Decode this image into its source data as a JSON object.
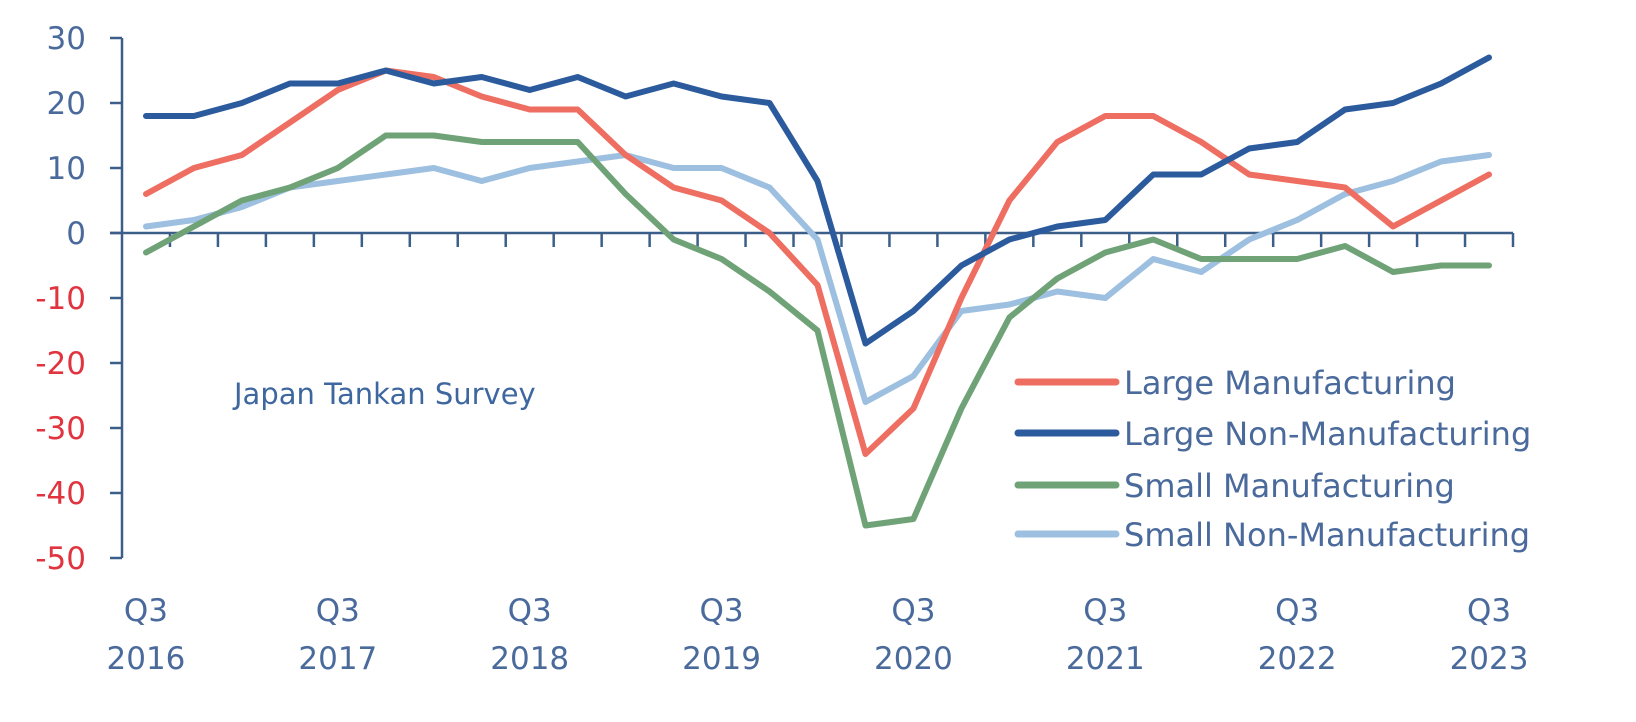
{
  "chart_data": {
    "type": "line",
    "title": "Japan Tankan Survey",
    "xlabel": "",
    "ylabel": "",
    "ylim": [
      -50,
      30
    ],
    "yticks": [
      30,
      20,
      10,
      0,
      -10,
      -20,
      -30,
      -40,
      -50
    ],
    "grid": false,
    "legend_position": "bottom-right",
    "x": [
      "Q3 2016",
      "Q4 2016",
      "Q1 2017",
      "Q2 2017",
      "Q3 2017",
      "Q4 2017",
      "Q1 2018",
      "Q2 2018",
      "Q3 2018",
      "Q4 2018",
      "Q1 2019",
      "Q2 2019",
      "Q3 2019",
      "Q4 2019",
      "Q1 2020",
      "Q2 2020",
      "Q3 2020",
      "Q4 2020",
      "Q1 2021",
      "Q2 2021",
      "Q3 2021",
      "Q4 2021",
      "Q1 2022",
      "Q2 2022",
      "Q3 2022",
      "Q4 2022",
      "Q1 2023",
      "Q2 2023",
      "Q3 2023"
    ],
    "x_tick_labels": [
      {
        "index": 0,
        "line1": "Q3",
        "line2": "2016"
      },
      {
        "index": 4,
        "line1": "Q3",
        "line2": "2017"
      },
      {
        "index": 8,
        "line1": "Q3",
        "line2": "2018"
      },
      {
        "index": 12,
        "line1": "Q3",
        "line2": "2019"
      },
      {
        "index": 16,
        "line1": "Q3",
        "line2": "2020"
      },
      {
        "index": 20,
        "line1": "Q3",
        "line2": "2021"
      },
      {
        "index": 24,
        "line1": "Q3",
        "line2": "2022"
      },
      {
        "index": 28,
        "line1": "Q3",
        "line2": "2023"
      }
    ],
    "series": [
      {
        "name": "Large Manufacturing",
        "color": "#ee6e62",
        "values": [
          6,
          10,
          12,
          17,
          22,
          25,
          24,
          21,
          19,
          19,
          12,
          7,
          5,
          0,
          -8,
          -34,
          -27,
          -10,
          5,
          14,
          18,
          18,
          14,
          9,
          8,
          7,
          1,
          5,
          9
        ]
      },
      {
        "name": "Large Non-Manufacturing",
        "color": "#2b5b9d",
        "values": [
          18,
          18,
          20,
          23,
          23,
          25,
          23,
          24,
          22,
          24,
          21,
          23,
          21,
          20,
          8,
          -17,
          -12,
          -5,
          -1,
          1,
          2,
          9,
          9,
          13,
          14,
          19,
          20,
          23,
          27
        ]
      },
      {
        "name": "Small Manufacturing",
        "color": "#6fa377",
        "values": [
          -3,
          1,
          5,
          7,
          10,
          15,
          15,
          14,
          14,
          14,
          6,
          -1,
          -4,
          -9,
          -15,
          -45,
          -44,
          -27,
          -13,
          -7,
          -3,
          -1,
          -4,
          -4,
          -4,
          -2,
          -6,
          -5,
          -5
        ]
      },
      {
        "name": "Small Non-Manufacturing",
        "color": "#9dbfe0",
        "values": [
          1,
          2,
          4,
          7,
          8,
          9,
          10,
          8,
          10,
          11,
          12,
          10,
          10,
          7,
          -1,
          -26,
          -22,
          -12,
          -11,
          -9,
          -10,
          -4,
          -6,
          -1,
          2,
          6,
          8,
          11,
          12
        ]
      }
    ]
  }
}
